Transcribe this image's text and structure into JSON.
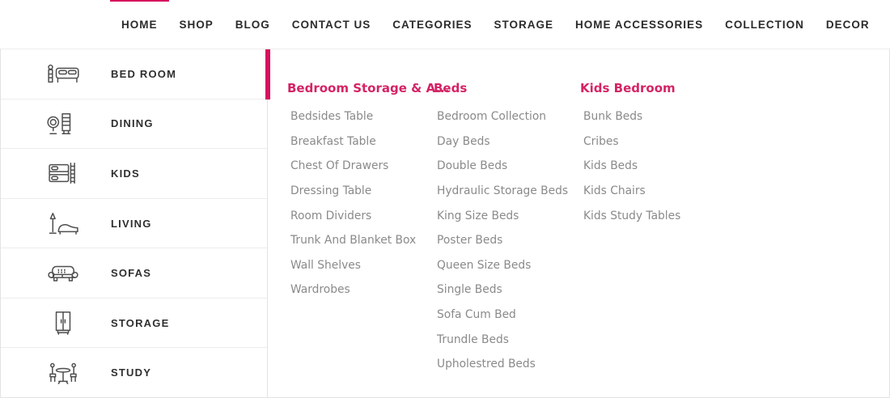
{
  "colors": {
    "accent_pink": "#d6115e",
    "heading_pink": "#d42365",
    "nav_text": "#2b2b2b",
    "item_text": "#8a8a8a",
    "border": "#e3e3e3"
  },
  "nav": {
    "items": [
      {
        "label": "HOME",
        "active": true
      },
      {
        "label": "SHOP",
        "active": false
      },
      {
        "label": "BLOG",
        "active": false
      },
      {
        "label": "CONTACT US",
        "active": false
      },
      {
        "label": "CATEGORIES",
        "active": false
      },
      {
        "label": "STORAGE",
        "active": false
      },
      {
        "label": "HOME ACCESSORIES",
        "active": false
      },
      {
        "label": "COLLECTION",
        "active": false
      },
      {
        "label": "DECOR",
        "active": false
      }
    ]
  },
  "sidebar": {
    "items": [
      {
        "label": "BED ROOM",
        "icon": "bed-icon",
        "active": true
      },
      {
        "label": "DINING",
        "icon": "dining-mirror-cabinet-icon",
        "active": false
      },
      {
        "label": "KIDS",
        "icon": "bunk-bed-icon",
        "active": false
      },
      {
        "label": "LIVING",
        "icon": "lamp-chaise-icon",
        "active": false
      },
      {
        "label": "SOFAS",
        "icon": "sofa-icon",
        "active": false
      },
      {
        "label": "STORAGE",
        "icon": "wardrobe-icon",
        "active": false
      },
      {
        "label": "STUDY",
        "icon": "study-table-chairs-icon",
        "active": false
      }
    ]
  },
  "megamenu": {
    "columns": [
      {
        "heading": "Bedroom Storage & A...",
        "items": [
          "Bedsides Table",
          "Breakfast Table",
          "Chest Of Drawers",
          "Dressing Table",
          "Room Dividers",
          "Trunk And Blanket Box",
          "Wall Shelves",
          "Wardrobes"
        ]
      },
      {
        "heading": "Beds",
        "items": [
          "Bedroom Collection",
          "Day Beds",
          "Double Beds",
          "Hydraulic Storage Beds",
          "King Size Beds",
          "Poster Beds",
          "Queen Size Beds",
          "Single Beds",
          "Sofa Cum Bed",
          "Trundle Beds",
          "Upholestred Beds"
        ]
      },
      {
        "heading": "Kids Bedroom",
        "items": [
          "Bunk Beds",
          "Cribes",
          "Kids Beds",
          "Kids Chairs",
          "Kids Study Tables"
        ]
      }
    ]
  }
}
